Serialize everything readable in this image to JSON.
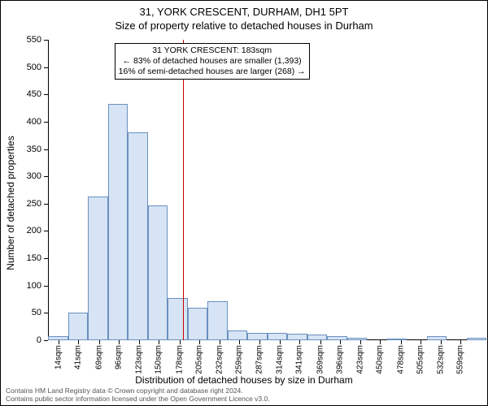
{
  "header": {
    "address": "31, YORK CRESCENT, DURHAM, DH1 5PT",
    "subtitle": "Size of property relative to detached houses in Durham"
  },
  "chart": {
    "type": "histogram",
    "y_axis_title": "Number of detached properties",
    "x_axis_title": "Distribution of detached houses by size in Durham",
    "ylim": [
      0,
      550
    ],
    "ytick_step": 50,
    "yticks": [
      0,
      50,
      100,
      150,
      200,
      250,
      300,
      350,
      400,
      450,
      500,
      550
    ],
    "xlim": [
      0,
      573
    ],
    "xticks": [
      14,
      41,
      69,
      96,
      123,
      150,
      178,
      205,
      232,
      259,
      287,
      314,
      341,
      369,
      396,
      423,
      450,
      478,
      505,
      532,
      559
    ],
    "xtick_suffix": "sqm",
    "bin_width": 27,
    "bin_start": 0,
    "bar_color": "#d6e4f5",
    "bar_border_color": "#6a8fbf",
    "bar_border_width": 1,
    "background_color": "#ffffff",
    "axis_color": "#000000",
    "tick_fontsize": 11,
    "values": [
      8,
      50,
      263,
      432,
      381,
      247,
      77,
      59,
      72,
      18,
      14,
      14,
      12,
      10,
      7,
      4,
      0,
      2,
      0,
      8,
      0,
      4
    ],
    "marker": {
      "x": 183,
      "color": "#cc0000",
      "width": 1
    },
    "annotation": {
      "lines": [
        "31 YORK CRESCENT: 183sqm",
        "← 83% of detached houses are smaller (1,393)",
        "16% of semi-detached houses are larger (268) →"
      ],
      "border_color": "#000000",
      "background": "#ffffff",
      "fontsize": 10.5,
      "position_x": 90,
      "position_y_from_top": 4
    }
  },
  "footer": {
    "line1": "Contains HM Land Registry data © Crown copyright and database right 2024.",
    "line2": "Contains public sector information licensed under the Open Government Licence v3.0."
  }
}
